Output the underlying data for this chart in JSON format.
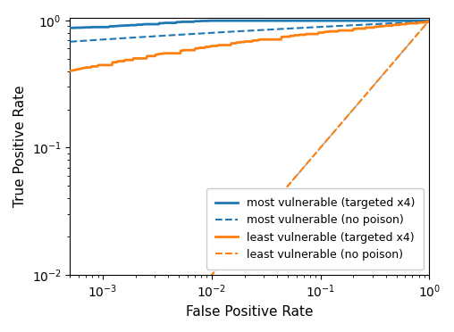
{
  "title": "",
  "xlabel": "False Positive Rate",
  "ylabel": "True Positive Rate",
  "xlim": [
    0.0005,
    1.0
  ],
  "ylim": [
    0.01,
    1.05
  ],
  "blue_color": "#1f77b4",
  "orange_color": "#ff7f0e",
  "diagonal_color": "#aaaaaa",
  "legend_entries": [
    "most vulnerable (targeted x4)",
    "most vulnerable (no poison)",
    "least vulnerable (targeted x4)",
    "least vulnerable (no poison)"
  ],
  "legend_loc": "lower right",
  "figsize": [
    5.08,
    3.72
  ],
  "dpi": 100
}
